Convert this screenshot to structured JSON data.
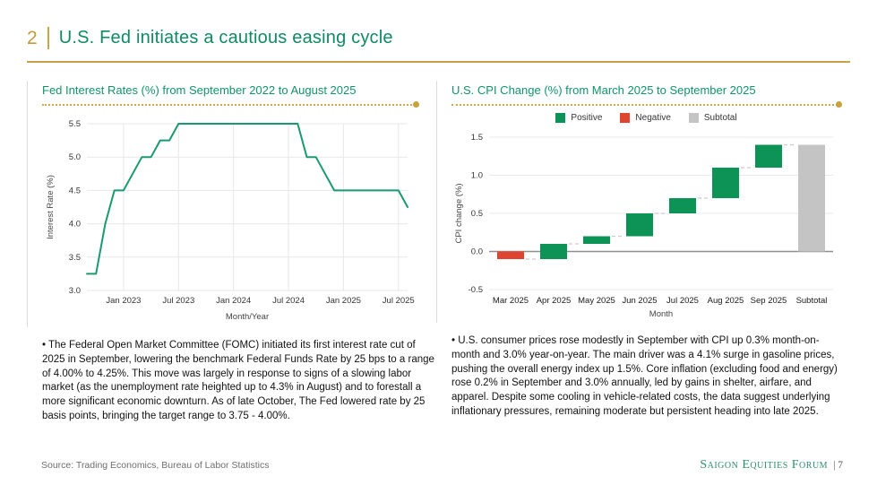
{
  "header": {
    "number": "2",
    "title": "U.S. Fed initiates a cautious easing cycle"
  },
  "colors": {
    "accent_gold": "#c5a245",
    "title_green": "#0f8a62",
    "chart_title_green": "#129467",
    "line_green": "#1a9a6e",
    "positive_green": "#0d9355",
    "negative_red": "#df4430",
    "subtotal_gray": "#c4c4c4",
    "divider_gray": "#dcdcdc"
  },
  "left_panel": {
    "commentary": "• The Federal Open Market Committee (FOMC) initiated its first interest rate cut of 2025 in September, lowering the benchmark Federal Funds Rate by 25 bps to a range of 4.00% to 4.25%. This move was largely in response to signs of a slowing labor market (as the unemployment rate heighted up to 4.3% in August) and to forestall a more significant economic downturn. As of late October, The Fed lowered rate by 25 basis points, bringing the target range to 3.75 - 4.00%."
  },
  "right_panel": {
    "commentary": "• U.S. consumer prices rose modestly in September with CPI up 0.3% month-on-month and 3.0% year-on-year. The main driver was a 4.1% surge in gasoline prices, pushing the overall energy index up 1.5%. Core inflation (excluding food and energy) rose 0.2% in September and 3.0% annually, led by gains in shelter, airfare, and apparel. Despite some cooling in vehicle-related costs, the data suggest underlying inflationary pressures, remaining moderate but persistent heading into late 2025."
  },
  "footer": {
    "source": "Source: Trading Economics, Bureau of Labor Statistics",
    "brand": "Saigon Equities Forum",
    "page_suffix": "| 7"
  },
  "chart_data": [
    {
      "type": "line",
      "title": "Fed Interest Rates (%) from September 2022 to August 2025",
      "xlabel": "Month/Year",
      "ylabel": "Interest Rate (%)",
      "ylim": [
        3.0,
        5.5
      ],
      "yticks": [
        3.0,
        3.5,
        4.0,
        4.5,
        5.0,
        5.5
      ],
      "grid": true,
      "line_color": "#1a9a6e",
      "x": [
        "Sep 2022",
        "Oct 2022",
        "Nov 2022",
        "Dec 2022",
        "Jan 2023",
        "Feb 2023",
        "Mar 2023",
        "Apr 2023",
        "May 2023",
        "Jun 2023",
        "Jul 2023",
        "Aug 2023",
        "Sep 2023",
        "Oct 2023",
        "Nov 2023",
        "Dec 2023",
        "Jan 2024",
        "Feb 2024",
        "Mar 2024",
        "Apr 2024",
        "May 2024",
        "Jun 2024",
        "Jul 2024",
        "Aug 2024",
        "Sep 2024",
        "Oct 2024",
        "Nov 2024",
        "Dec 2024",
        "Jan 2025",
        "Feb 2025",
        "Mar 2025",
        "Apr 2025",
        "May 2025",
        "Jun 2025",
        "Jul 2025",
        "Aug 2025"
      ],
      "values": [
        3.25,
        3.25,
        4.0,
        4.5,
        4.5,
        4.75,
        5.0,
        5.0,
        5.25,
        5.25,
        5.5,
        5.5,
        5.5,
        5.5,
        5.5,
        5.5,
        5.5,
        5.5,
        5.5,
        5.5,
        5.5,
        5.5,
        5.5,
        5.5,
        5.0,
        5.0,
        4.75,
        4.5,
        4.5,
        4.5,
        4.5,
        4.5,
        4.5,
        4.5,
        4.5,
        4.25
      ],
      "xtick_indices": [
        4,
        10,
        16,
        22,
        28,
        34
      ],
      "xtick_labels": [
        "Jan 2023",
        "Jul 2023",
        "Jan 2024",
        "Jul 2024",
        "Jan 2025",
        "Jul 2025"
      ]
    },
    {
      "type": "bar",
      "variant": "waterfall",
      "title": "U.S. CPI Change (%) from March 2025 to September 2025",
      "xlabel": "Month",
      "ylabel": "CPI change (%)",
      "ylim": [
        -0.5,
        1.5
      ],
      "yticks": [
        -0.5,
        0.0,
        0.5,
        1.0,
        1.5
      ],
      "grid": true,
      "legend_position": "top",
      "legend_items": [
        {
          "label": "Positive",
          "color": "#0d9355"
        },
        {
          "label": "Negative",
          "color": "#df4430"
        },
        {
          "label": "Subtotal",
          "color": "#c4c4c4"
        }
      ],
      "colors": {
        "positive": "#0d9355",
        "negative": "#df4430",
        "subtotal": "#c4c4c4"
      },
      "categories": [
        "Mar 2025",
        "Apr 2025",
        "May 2025",
        "Jun 2025",
        "Jul 2025",
        "Aug 2025",
        "Sep 2025",
        "Subtotal"
      ],
      "bars": [
        {
          "category": "Mar 2025",
          "change": -0.1,
          "start": 0.0,
          "end": -0.1,
          "type": "negative"
        },
        {
          "category": "Apr 2025",
          "change": 0.2,
          "start": -0.1,
          "end": 0.1,
          "type": "positive"
        },
        {
          "category": "May 2025",
          "change": 0.1,
          "start": 0.1,
          "end": 0.2,
          "type": "positive"
        },
        {
          "category": "Jun 2025",
          "change": 0.3,
          "start": 0.2,
          "end": 0.5,
          "type": "positive"
        },
        {
          "category": "Jul 2025",
          "change": 0.2,
          "start": 0.5,
          "end": 0.7,
          "type": "positive"
        },
        {
          "category": "Aug 2025",
          "change": 0.4,
          "start": 0.7,
          "end": 1.1,
          "type": "positive"
        },
        {
          "category": "Sep 2025",
          "change": 0.3,
          "start": 1.1,
          "end": 1.4,
          "type": "positive"
        },
        {
          "category": "Subtotal",
          "change": 1.4,
          "start": 0.0,
          "end": 1.4,
          "type": "subtotal"
        }
      ]
    }
  ]
}
